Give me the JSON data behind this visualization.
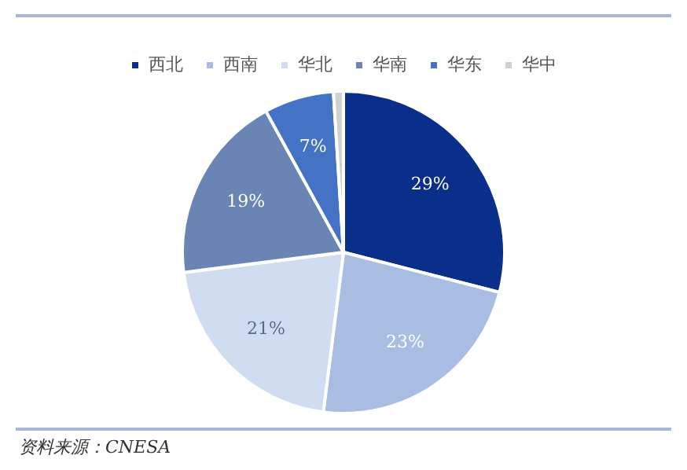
{
  "chart_data": {
    "type": "pie",
    "categories": [
      "西北",
      "西南",
      "华北",
      "华南",
      "华东",
      "华中"
    ],
    "values": [
      29,
      23,
      21,
      19,
      7,
      1
    ],
    "colors": [
      "#0a2f8a",
      "#a9bde3",
      "#d0ddf0",
      "#6a84b4",
      "#4472c4",
      "#d0d0d0"
    ],
    "value_labels": [
      "29%",
      "23%",
      "21%",
      "19%",
      "7%",
      null
    ],
    "legend": "top",
    "annotations": [
      "资料来源：CNESA"
    ]
  }
}
